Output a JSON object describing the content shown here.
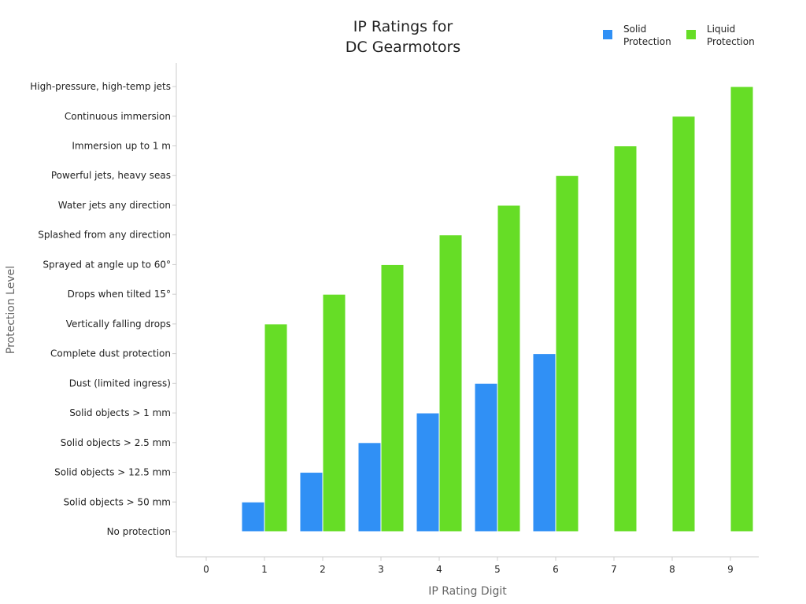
{
  "chart_data": {
    "type": "bar",
    "title_lines": [
      "IP Ratings for",
      "DC Gearmotors"
    ],
    "xlabel": "IP Rating Digit",
    "ylabel": "Protection Level",
    "x_categories": [
      "0",
      "1",
      "2",
      "3",
      "4",
      "5",
      "6",
      "7",
      "8",
      "9"
    ],
    "y_levels": [
      "No protection",
      "Solid objects > 50 mm",
      "Solid objects > 12.5 mm",
      "Solid objects > 2.5 mm",
      "Solid objects > 1 mm",
      "Dust (limited ingress)",
      "Complete dust protection",
      "Vertically falling drops",
      "Drops when tilted 15°",
      "Sprayed at angle up to 60°",
      "Splashed from any direction",
      "Water jets any direction",
      "Powerful jets, heavy seas",
      "Immersion up to 1 m",
      "Continuous immersion",
      "High-pressure, high-temp jets"
    ],
    "series": [
      {
        "name": "Solid Protection",
        "legend_lines": [
          "Solid",
          "Protection"
        ],
        "color": "#3090f5",
        "values": [
          0,
          1,
          2,
          3,
          4,
          5,
          6,
          0,
          0,
          0
        ]
      },
      {
        "name": "Liquid Protection",
        "legend_lines": [
          "Liquid",
          "Protection"
        ],
        "color": "#66dd26",
        "values": [
          0,
          7,
          8,
          9,
          10,
          11,
          12,
          13,
          14,
          15
        ]
      }
    ],
    "legend_position": "top-right"
  },
  "colors": {
    "text": "#222222",
    "axis_label": "#666666",
    "axis_line": "#cccccc"
  }
}
